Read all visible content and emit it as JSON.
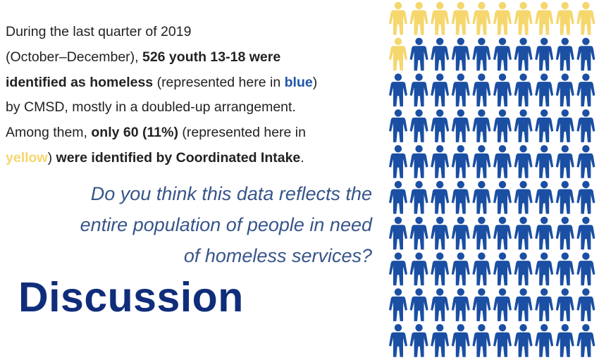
{
  "text": {
    "line1": "During the last quarter of 2019",
    "line2_plain": "(October–December), ",
    "line2_bold": "526 youth 13-18 were",
    "line3_bold": "identified as homeless",
    "line3_plain": " (represented here in ",
    "line3_blue": "blue",
    "line3_end": ")",
    "line4": "by CMSD, mostly in a doubled-up arrangement.",
    "line5_plain": "Among them, ",
    "line5_bold": "only 60 (11%)",
    "line5_end": " (represented here in",
    "line6_yellow": "yellow",
    "line6_plain": ") ",
    "line6_bold": "were identified by Coordinated Intake",
    "line6_end": "."
  },
  "question": {
    "line1": "Do you think this data reflects the",
    "line2": "entire population of people in need",
    "line3": "of homeless services?"
  },
  "heading": "Discussion",
  "icon_grid": {
    "columns": 10,
    "rows": 10,
    "yellow_count": 11,
    "colors": {
      "yellow": "#f5d76e",
      "blue": "#1a4fa3"
    }
  }
}
